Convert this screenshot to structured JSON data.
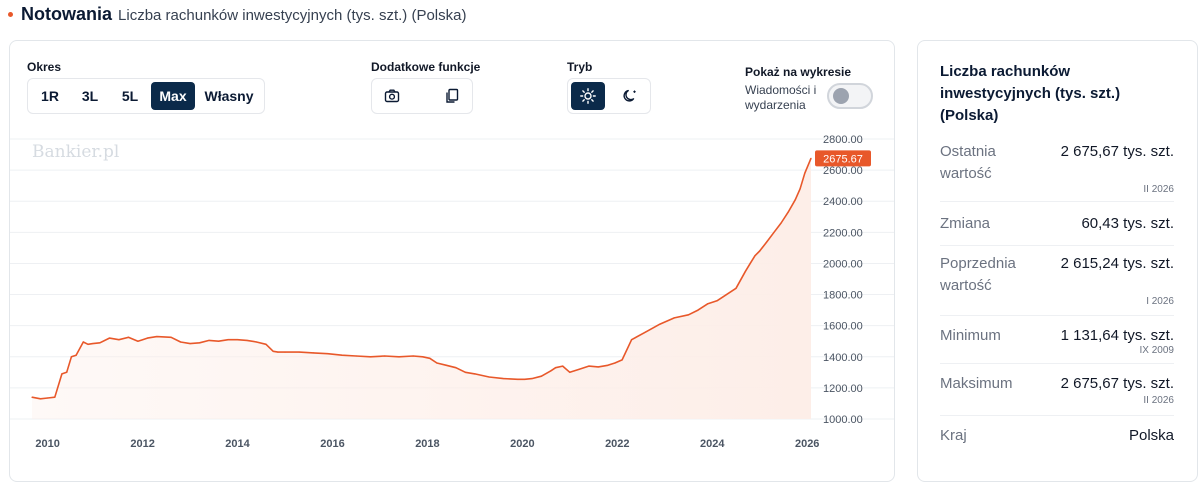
{
  "header": {
    "title": "Notowania",
    "subtitle": "Liczba rachunków inwestycyjnych (tys. szt.) (Polska)"
  },
  "controls": {
    "period_label": "Okres",
    "periods": [
      "1R",
      "3L",
      "5L",
      "Max",
      "Własny"
    ],
    "active_period": "Max",
    "extra_label": "Dodatkowe funkcje",
    "extra_icons": [
      "camera-icon",
      "copy-icon"
    ],
    "mode_label": "Tryb",
    "mode_icons": [
      "sun-icon",
      "moon-icon"
    ],
    "active_mode": "sun-icon",
    "show_label": "Pokaż na wykresie",
    "news_label": "Wiadomości i wydarzenia",
    "news_enabled": false
  },
  "chart_data": {
    "type": "area",
    "watermark": "Bankier.pl",
    "x": [
      2009.67,
      2009.85,
      2010.0,
      2010.15,
      2010.3,
      2010.4,
      2010.5,
      2010.6,
      2010.75,
      2010.85,
      2010.95,
      2011.1,
      2011.3,
      2011.5,
      2011.7,
      2011.9,
      2012.0,
      2012.1,
      2012.3,
      2012.6,
      2012.8,
      2013.0,
      2013.2,
      2013.4,
      2013.6,
      2013.8,
      2014.0,
      2014.2,
      2014.4,
      2014.6,
      2014.75,
      2014.85,
      2015.0,
      2015.3,
      2015.6,
      2015.9,
      2016.2,
      2016.5,
      2016.8,
      2017.1,
      2017.4,
      2017.7,
      2017.9,
      2018.05,
      2018.2,
      2018.4,
      2018.6,
      2018.8,
      2019.0,
      2019.3,
      2019.6,
      2019.9,
      2020.05,
      2020.2,
      2020.4,
      2020.6,
      2020.7,
      2020.85,
      2021.0,
      2021.2,
      2021.4,
      2021.6,
      2021.8,
      2021.95,
      2022.1,
      2022.3,
      2022.6,
      2022.9,
      2023.2,
      2023.5,
      2023.7,
      2023.9,
      2024.1,
      2024.3,
      2024.5,
      2024.7,
      2024.8,
      2024.9,
      2025.0,
      2025.15,
      2025.3,
      2025.45,
      2025.6,
      2025.75,
      2025.85,
      2025.95,
      2026.08
    ],
    "values": [
      1140,
      1130,
      1135,
      1140,
      1290,
      1300,
      1400,
      1410,
      1495,
      1480,
      1485,
      1490,
      1520,
      1510,
      1525,
      1500,
      1510,
      1520,
      1530,
      1525,
      1495,
      1485,
      1490,
      1505,
      1500,
      1510,
      1510,
      1505,
      1495,
      1480,
      1435,
      1430,
      1430,
      1430,
      1425,
      1420,
      1410,
      1405,
      1400,
      1405,
      1400,
      1405,
      1400,
      1390,
      1360,
      1345,
      1330,
      1300,
      1290,
      1270,
      1260,
      1255,
      1255,
      1260,
      1275,
      1310,
      1330,
      1340,
      1300,
      1320,
      1340,
      1335,
      1345,
      1360,
      1380,
      1510,
      1560,
      1610,
      1650,
      1670,
      1700,
      1740,
      1760,
      1800,
      1840,
      1950,
      2000,
      2050,
      2080,
      2140,
      2200,
      2260,
      2330,
      2410,
      2480,
      2580,
      2675.67
    ],
    "last_value_label": "2675.67",
    "title": "",
    "xlabel": "",
    "ylabel": "",
    "ylim": [
      1000,
      2800
    ],
    "yticks": [
      "2800.00",
      "2600.00",
      "2400.00",
      "2200.00",
      "2000.00",
      "1800.00",
      "1600.00",
      "1400.00",
      "1200.00",
      "1000.00"
    ],
    "ytick_values": [
      2800,
      2600,
      2400,
      2200,
      2000,
      1800,
      1600,
      1400,
      1200,
      1000
    ],
    "xticks": [
      "2010",
      "2012",
      "2014",
      "2016",
      "2018",
      "2020",
      "2022",
      "2024",
      "2026"
    ],
    "xtick_values": [
      2010,
      2012,
      2014,
      2016,
      2018,
      2020,
      2022,
      2024,
      2026
    ],
    "xlim": [
      2009.67,
      2026.08
    ],
    "grid": true,
    "line_color": "#e8582a",
    "fill_color": "#fdeee8"
  },
  "side": {
    "title": "Liczba rachunków inwestycyjnych (tys. szt.) (Polska)",
    "rows": [
      {
        "label": "Ostatnia wartość",
        "value": "2 675,67 tys. szt.",
        "period": "II 2026"
      },
      {
        "label": "Zmiana",
        "value": "60,43 tys. szt.",
        "period": ""
      },
      {
        "label": "Poprzednia wartość",
        "value": "2 615,24 tys. szt.",
        "period": "I 2026"
      },
      {
        "label": "Minimum",
        "value": "1 131,64 tys. szt.",
        "period": "IX 2009"
      },
      {
        "label": "Maksimum",
        "value": "2 675,67 tys. szt.",
        "period": "II 2026"
      },
      {
        "label": "Kraj",
        "value": "Polska",
        "period": ""
      }
    ]
  },
  "colors": {
    "accent": "#e8582a",
    "navy": "#0b2a4a"
  }
}
